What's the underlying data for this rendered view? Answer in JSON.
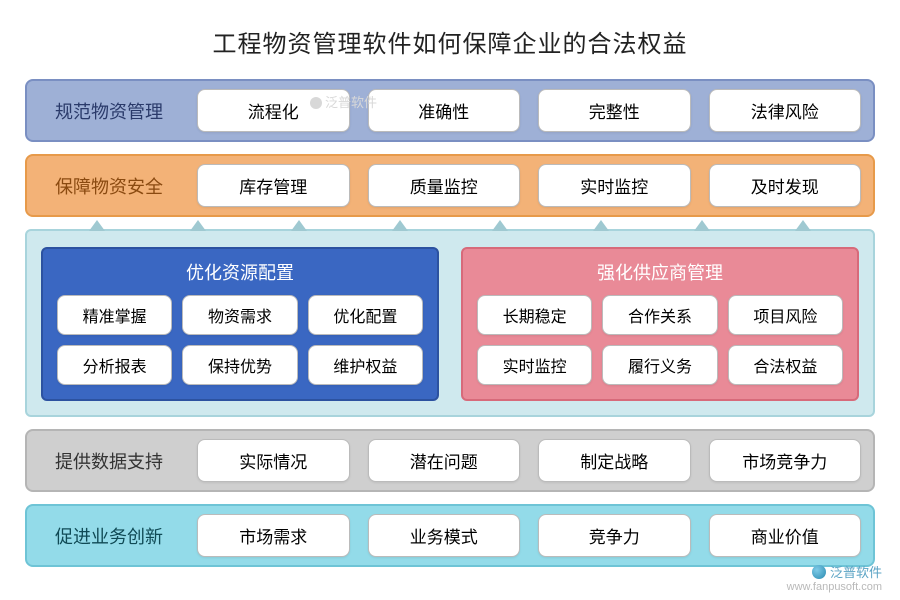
{
  "title": "工程物资管理软件如何保障企业的合法权益",
  "rows": {
    "r1": {
      "label": "规范物资管理",
      "items": [
        "流程化",
        "准确性",
        "完整性",
        "法律风险"
      ],
      "bg": "#9eb0d6",
      "border": "#7a8fc2"
    },
    "r2": {
      "label": "保障物资安全",
      "items": [
        "库存管理",
        "质量监控",
        "实时监控",
        "及时发现"
      ],
      "bg": "#f3b277",
      "border": "#e79a4a"
    },
    "r5": {
      "label": "提供数据支持",
      "items": [
        "实际情况",
        "潜在问题",
        "制定战略",
        "市场竞争力"
      ],
      "bg": "#cfcfcf",
      "border": "#b5b5b5"
    },
    "r6": {
      "label": "促进业务创新",
      "items": [
        "市场需求",
        "业务模式",
        "竞争力",
        "商业价值"
      ],
      "bg": "#93dbe9",
      "border": "#6ec4d6"
    }
  },
  "middle": {
    "container_bg": "#cfe9ee",
    "container_border": "#a8d4dc",
    "arrow_color": "#9fc9d1",
    "arrow_count": 8,
    "left": {
      "title": "优化资源配置",
      "bg": "#3a67c2",
      "border": "#2c52a0",
      "items": [
        "精准掌握",
        "物资需求",
        "优化配置",
        "分析报表",
        "保持优势",
        "维护权益"
      ]
    },
    "right": {
      "title": "强化供应商管理",
      "bg": "#e98a97",
      "border": "#d76a7a",
      "items": [
        "长期稳定",
        "合作关系",
        "项目风险",
        "实时监控",
        "履行义务",
        "合法权益"
      ]
    }
  },
  "watermark": {
    "brand": "泛普软件",
    "url": "www.fanpusoft.com"
  },
  "style": {
    "title_fontsize": 24,
    "row_label_fontsize": 18,
    "pill_fontsize": 17,
    "panel_pill_fontsize": 16,
    "pill_bg": "#ffffff",
    "pill_border": "#bbbbbb",
    "border_radius": 8
  }
}
